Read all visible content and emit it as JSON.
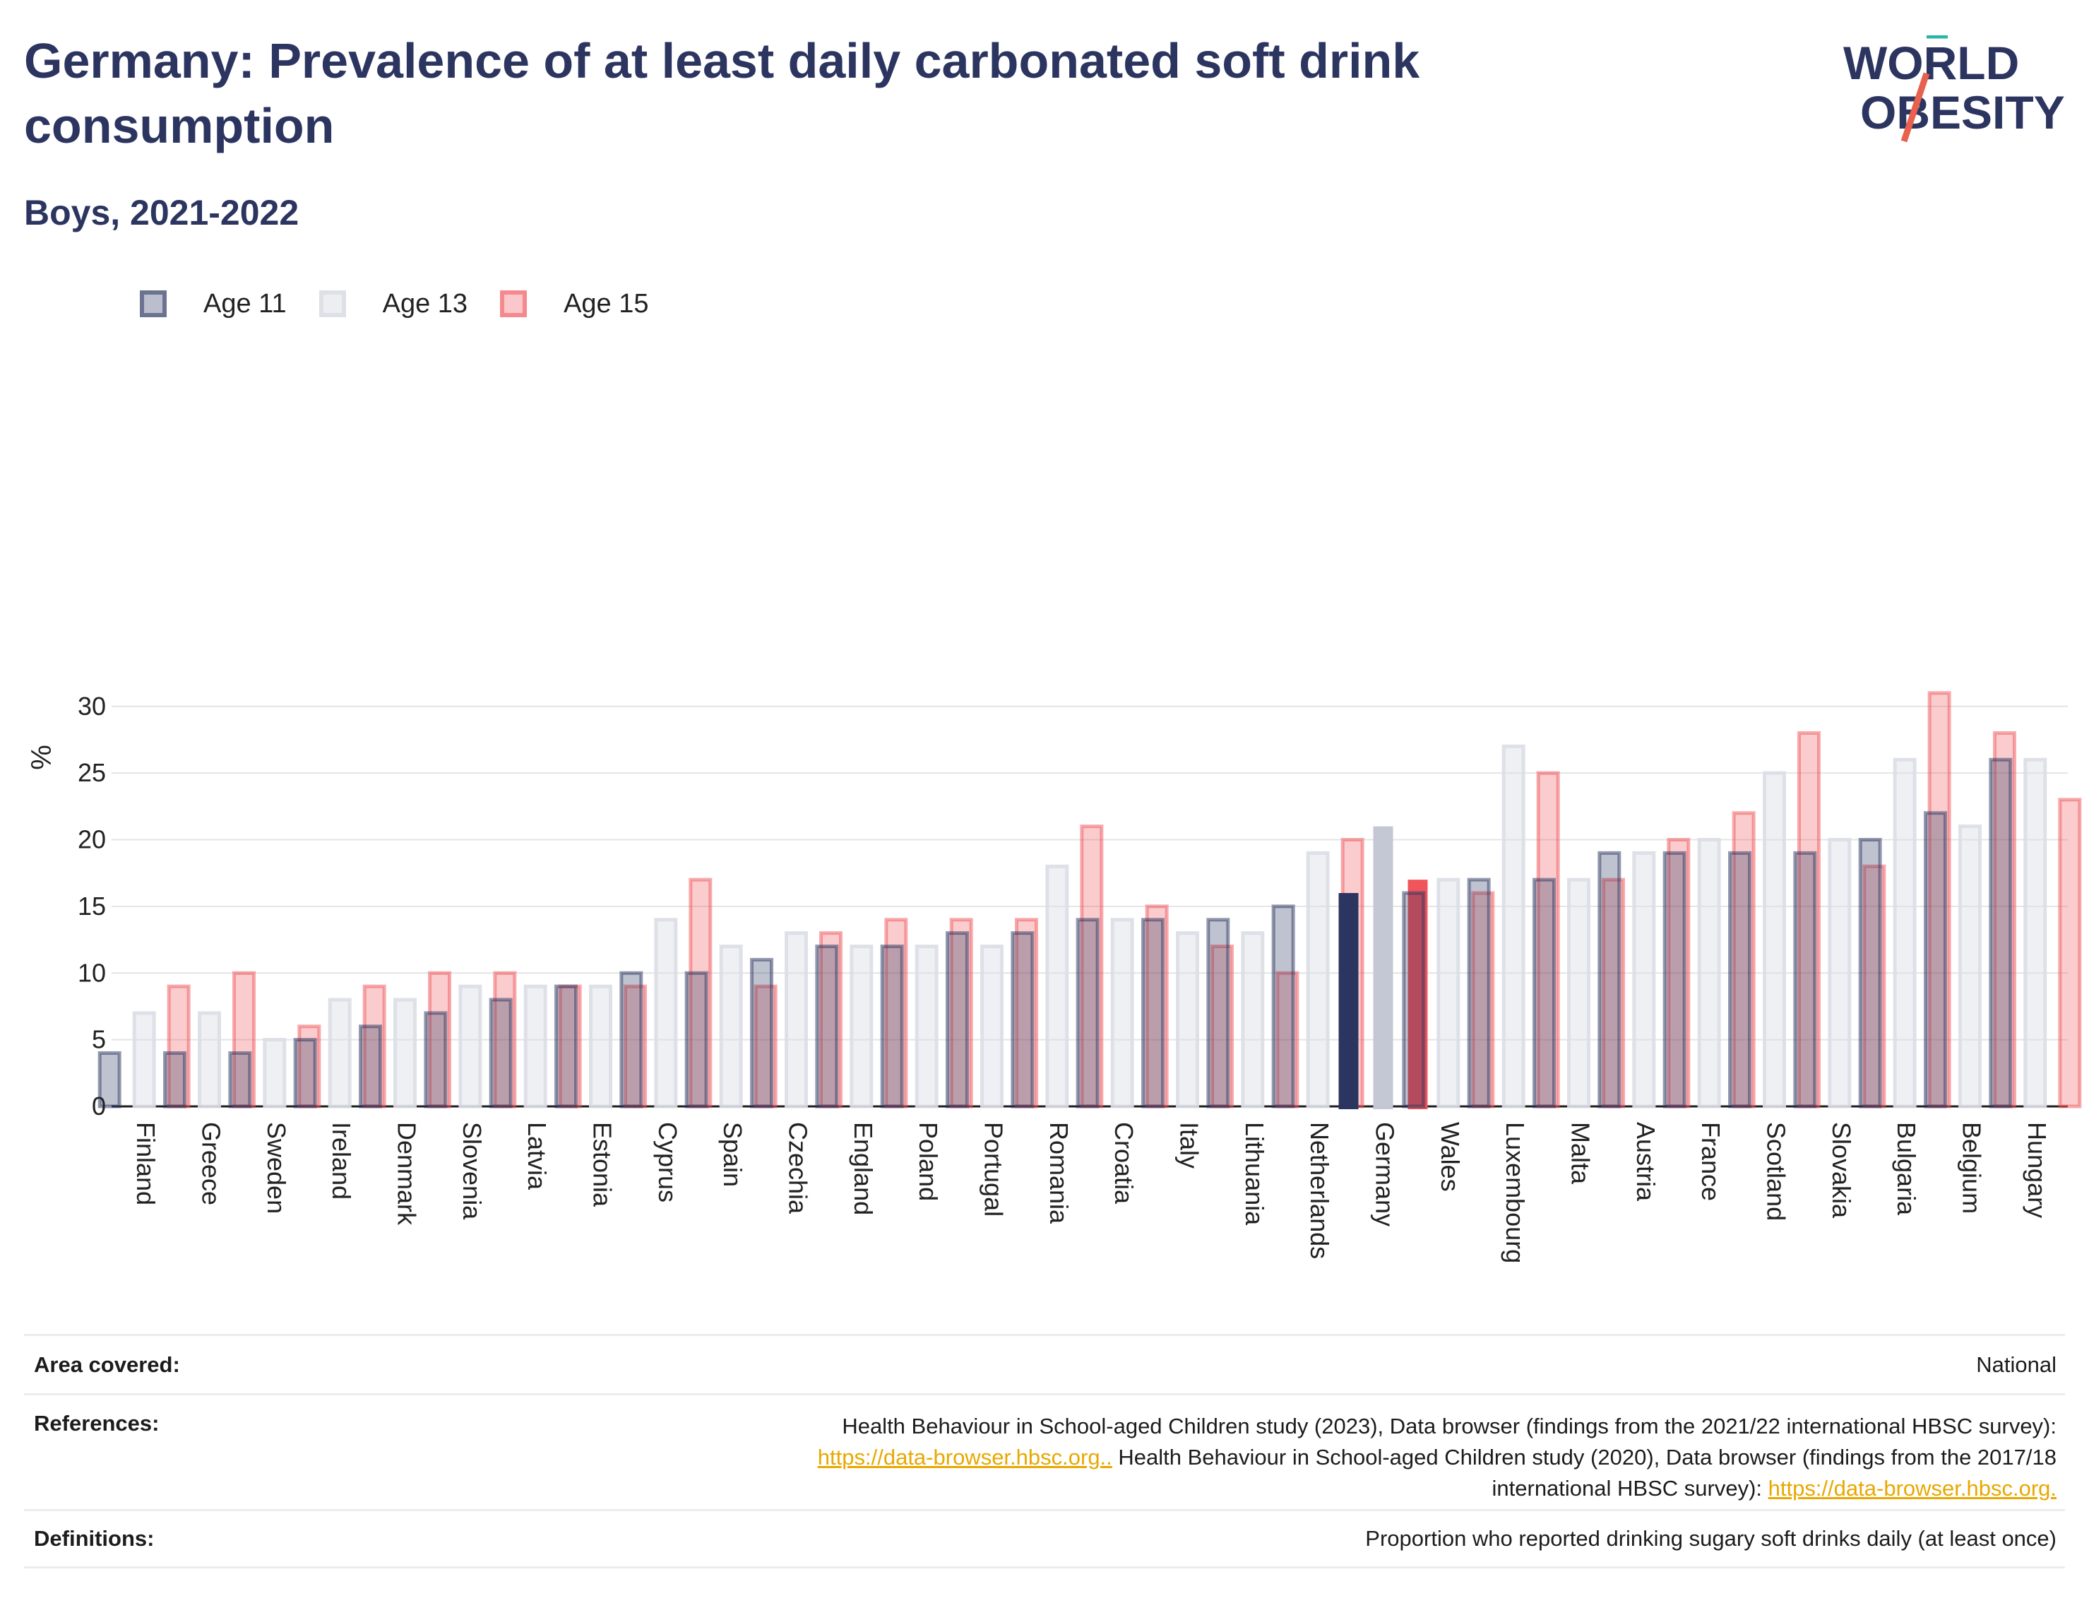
{
  "title": "Germany: Prevalence of at least daily carbonated soft drink consumption",
  "subtitle": "Boys, 2021-2022",
  "logo": {
    "line1": "WORLD",
    "line2": "OBESITY"
  },
  "colors": {
    "age11": "#2c3560",
    "age13": "#dcdee6",
    "age15": "#f0555b",
    "highlight13": "#c4c7d4"
  },
  "chart_data": {
    "type": "bar",
    "ylabel": "%",
    "ylim": [
      0,
      32
    ],
    "yticks": [
      0,
      5,
      10,
      15,
      20,
      25,
      30
    ],
    "grid": true,
    "legend_position": "top-left",
    "highlight": "Germany",
    "categories": [
      "Finland",
      "Greece",
      "Sweden",
      "Ireland",
      "Denmark",
      "Slovenia",
      "Latvia",
      "Estonia",
      "Cyprus",
      "Spain",
      "Czechia",
      "England",
      "Poland",
      "Portugal",
      "Romania",
      "Croatia",
      "Italy",
      "Lithuania",
      "Netherlands",
      "Germany",
      "Wales",
      "Luxembourg",
      "Malta",
      "Austria",
      "France",
      "Scotland",
      "Slovakia",
      "Bulgaria",
      "Belgium",
      "Hungary"
    ],
    "series": [
      {
        "name": "Age 11",
        "values": [
          4,
          4,
          4,
          5,
          6,
          7,
          8,
          9,
          10,
          10,
          11,
          12,
          12,
          13,
          13,
          14,
          14,
          14,
          15,
          16,
          16,
          17,
          17,
          19,
          19,
          19,
          19,
          20,
          22,
          26
        ]
      },
      {
        "name": "Age 13",
        "values": [
          7,
          7,
          5,
          8,
          8,
          9,
          9,
          9,
          14,
          12,
          13,
          12,
          12,
          12,
          18,
          14,
          13,
          13,
          19,
          21,
          17,
          27,
          17,
          19,
          20,
          25,
          20,
          26,
          21,
          26
        ]
      },
      {
        "name": "Age 15",
        "values": [
          9,
          10,
          6,
          9,
          10,
          10,
          9,
          9,
          17,
          9,
          13,
          14,
          14,
          14,
          21,
          15,
          12,
          10,
          20,
          17,
          16,
          25,
          17,
          20,
          22,
          28,
          18,
          31,
          28,
          23
        ]
      }
    ]
  },
  "footer": {
    "area_label": "Area covered:",
    "area_value": "National",
    "references_label": "References:",
    "references_text1": "Health Behaviour in School-aged Children study (2023), Data browser (findings from the 2021/22 international HBSC survey):",
    "references_link1": "https://data-browser.hbsc.org..",
    "references_text2": " Health Behaviour in School-aged Children study (2020), Data browser (findings from the 2017/18",
    "references_text3": "international HBSC survey): ",
    "references_link2": "https://data-browser.hbsc.org.",
    "definitions_label": "Definitions:",
    "definitions_value": "Proportion who reported drinking sugary soft drinks daily (at least once)"
  }
}
